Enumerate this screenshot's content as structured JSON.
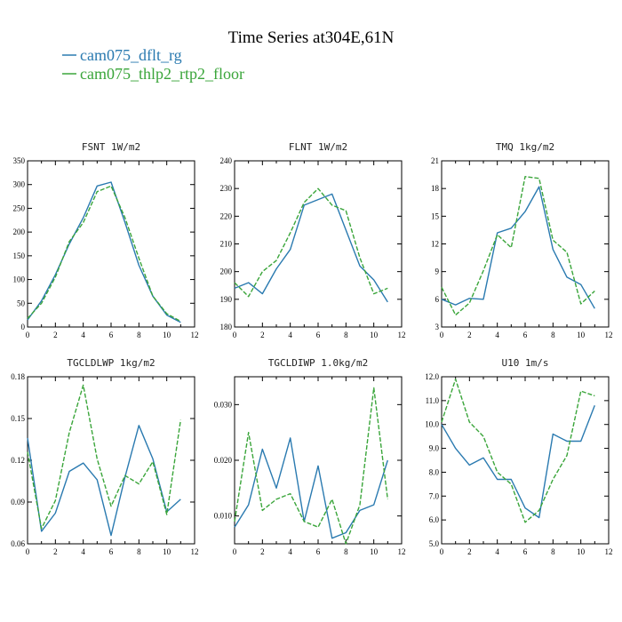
{
  "figure": {
    "title": "Time Series at304E,61N",
    "legend": [
      {
        "label": "cam075_dflt_rg",
        "color": "#2a7ab0"
      },
      {
        "label": "cam075_thlp2_rtp2_floor",
        "color": "#3aa53a"
      }
    ]
  },
  "chart_data": [
    {
      "type": "line",
      "title": "FSNT   1W/m2",
      "x": [
        0,
        1,
        2,
        3,
        4,
        5,
        6,
        7,
        8,
        9,
        10,
        11
      ],
      "xlim": [
        0,
        12
      ],
      "xticks": [
        0,
        2,
        4,
        6,
        8,
        10,
        12
      ],
      "ylim": [
        0,
        350
      ],
      "yticks": [
        0,
        50,
        100,
        150,
        200,
        250,
        300,
        350
      ],
      "ytick_labels": [
        "0",
        "50",
        "100",
        "150",
        "200",
        "250",
        "300",
        "350"
      ],
      "series": [
        {
          "name": "cam075_dflt_rg",
          "values": [
            15,
            55,
            110,
            175,
            230,
            297,
            305,
            220,
            130,
            65,
            25,
            10
          ],
          "color": "#2a7ab0",
          "dash": ""
        },
        {
          "name": "cam075_thlp2_rtp2_floor",
          "values": [
            18,
            50,
            105,
            180,
            220,
            285,
            297,
            230,
            145,
            65,
            28,
            12
          ],
          "color": "#3aa53a",
          "dash": "5,2"
        }
      ]
    },
    {
      "type": "line",
      "title": "FLNT   1W/m2",
      "x": [
        0,
        1,
        2,
        3,
        4,
        5,
        6,
        7,
        8,
        9,
        10,
        11
      ],
      "xlim": [
        0,
        12
      ],
      "xticks": [
        0,
        2,
        4,
        6,
        8,
        10,
        12
      ],
      "ylim": [
        180,
        240
      ],
      "yticks": [
        180,
        190,
        200,
        210,
        220,
        230,
        240
      ],
      "ytick_labels": [
        "180",
        "190",
        "200",
        "210",
        "220",
        "230",
        "240"
      ],
      "series": [
        {
          "name": "cam075_dflt_rg",
          "values": [
            194,
            196,
            192,
            201,
            208,
            224,
            226,
            228,
            215,
            202,
            197,
            189
          ],
          "color": "#2a7ab0",
          "dash": ""
        },
        {
          "name": "cam075_thlp2_rtp2_floor",
          "values": [
            196,
            191,
            200,
            204,
            214,
            225,
            230,
            224,
            222,
            205,
            192,
            194
          ],
          "color": "#3aa53a",
          "dash": "5,2"
        }
      ]
    },
    {
      "type": "line",
      "title": "TMQ   1kg/m2",
      "x": [
        0,
        1,
        2,
        3,
        4,
        5,
        6,
        7,
        8,
        9,
        10,
        11
      ],
      "xlim": [
        0,
        12
      ],
      "xticks": [
        0,
        2,
        4,
        6,
        8,
        10,
        12
      ],
      "ylim": [
        3,
        21
      ],
      "yticks": [
        3,
        6,
        9,
        12,
        15,
        18,
        21
      ],
      "ytick_labels": [
        "3",
        "6",
        "9",
        "12",
        "15",
        "18",
        "21"
      ],
      "series": [
        {
          "name": "cam075_dflt_rg",
          "values": [
            6.0,
            5.4,
            6.1,
            6.0,
            13.2,
            13.7,
            15.5,
            18.2,
            11.4,
            8.4,
            7.6,
            5.0
          ],
          "color": "#2a7ab0",
          "dash": ""
        },
        {
          "name": "cam075_thlp2_rtp2_floor",
          "values": [
            7.3,
            4.3,
            5.6,
            9.1,
            13.0,
            11.6,
            19.3,
            19.1,
            12.4,
            11.1,
            5.5,
            6.9
          ],
          "color": "#3aa53a",
          "dash": "5,2"
        }
      ]
    },
    {
      "type": "line",
      "title": "TGCLDLWP   1kg/m2",
      "x": [
        0,
        1,
        2,
        3,
        4,
        5,
        6,
        7,
        8,
        9,
        10,
        11
      ],
      "xlim": [
        0,
        12
      ],
      "xticks": [
        0,
        2,
        4,
        6,
        8,
        10,
        12
      ],
      "ylim": [
        0.06,
        0.18
      ],
      "yticks": [
        0.06,
        0.09,
        0.12,
        0.15,
        0.18
      ],
      "ytick_labels": [
        "0.06",
        "0.09",
        "0.12",
        "0.15",
        "0.18"
      ],
      "series": [
        {
          "name": "cam075_dflt_rg",
          "values": [
            0.136,
            0.069,
            0.082,
            0.112,
            0.118,
            0.106,
            0.066,
            0.108,
            0.145,
            0.121,
            0.083,
            0.092
          ],
          "color": "#2a7ab0",
          "dash": ""
        },
        {
          "name": "cam075_thlp2_rtp2_floor",
          "values": [
            0.126,
            0.071,
            0.091,
            0.14,
            0.174,
            0.121,
            0.087,
            0.109,
            0.103,
            0.119,
            0.081,
            0.149
          ],
          "color": "#3aa53a",
          "dash": "5,2"
        }
      ]
    },
    {
      "type": "line",
      "title": "TGCLDIWP   1.0kg/m2",
      "x": [
        0,
        1,
        2,
        3,
        4,
        5,
        6,
        7,
        8,
        9,
        10,
        11
      ],
      "xlim": [
        0,
        12
      ],
      "xticks": [
        0,
        2,
        4,
        6,
        8,
        10,
        12
      ],
      "ylim": [
        0.005,
        0.035
      ],
      "yticks": [
        0.01,
        0.02,
        0.03
      ],
      "ytick_labels": [
        "0.010",
        "0.020",
        "0.030"
      ],
      "series": [
        {
          "name": "cam075_dflt_rg",
          "values": [
            0.008,
            0.012,
            0.022,
            0.015,
            0.024,
            0.009,
            0.019,
            0.006,
            0.007,
            0.011,
            0.012,
            0.02
          ],
          "color": "#2a7ab0",
          "dash": ""
        },
        {
          "name": "cam075_thlp2_rtp2_floor",
          "values": [
            0.009,
            0.025,
            0.011,
            0.013,
            0.014,
            0.009,
            0.008,
            0.013,
            0.005,
            0.012,
            0.033,
            0.013
          ],
          "color": "#3aa53a",
          "dash": "5,2"
        }
      ]
    },
    {
      "type": "line",
      "title": "U10   1m/s",
      "x": [
        0,
        1,
        2,
        3,
        4,
        5,
        6,
        7,
        8,
        9,
        10,
        11
      ],
      "xlim": [
        0,
        12
      ],
      "xticks": [
        0,
        2,
        4,
        6,
        8,
        10,
        12
      ],
      "ylim": [
        5.0,
        12.0
      ],
      "yticks": [
        5.0,
        6.0,
        7.0,
        8.0,
        9.0,
        10.0,
        11.0,
        12.0
      ],
      "ytick_labels": [
        "5.0",
        "6.0",
        "7.0",
        "8.0",
        "9.0",
        "10.0",
        "11.0",
        "12.0"
      ],
      "series": [
        {
          "name": "cam075_dflt_rg",
          "values": [
            10.0,
            9.0,
            8.3,
            8.6,
            7.7,
            7.7,
            6.5,
            6.1,
            9.6,
            9.3,
            9.3,
            10.8
          ],
          "color": "#2a7ab0",
          "dash": ""
        },
        {
          "name": "cam075_thlp2_rtp2_floor",
          "values": [
            10.1,
            11.9,
            10.1,
            9.5,
            8.0,
            7.5,
            5.9,
            6.4,
            7.7,
            8.7,
            11.4,
            11.2
          ],
          "color": "#3aa53a",
          "dash": "5,2"
        }
      ]
    }
  ]
}
